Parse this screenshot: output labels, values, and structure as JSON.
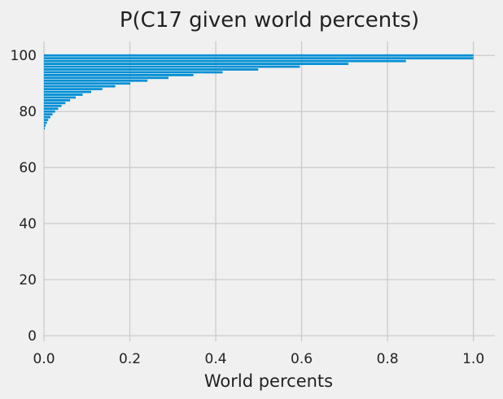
{
  "chart_data": {
    "type": "bar",
    "orientation": "horizontal",
    "title": "P(C17 given world percents)",
    "xlabel": "World percents",
    "ylabel": "",
    "xlim": [
      0,
      1.05
    ],
    "ylim": [
      -2,
      105
    ],
    "x_ticks": [
      0.0,
      0.2,
      0.4,
      0.6,
      0.8,
      1.0
    ],
    "x_tick_labels": [
      "0.0",
      "0.2",
      "0.4",
      "0.6",
      "0.8",
      "1.0"
    ],
    "y_ticks": [
      0,
      20,
      40,
      60,
      80,
      100
    ],
    "y_tick_labels": [
      "0",
      "20",
      "40",
      "60",
      "80",
      "100"
    ],
    "grid": true,
    "bar_color": "#008fd5",
    "background": "#f0f0f0",
    "categories": [
      74,
      75,
      76,
      77,
      78,
      79,
      80,
      81,
      82,
      83,
      84,
      85,
      86,
      87,
      88,
      89,
      90,
      91,
      92,
      93,
      94,
      95,
      96,
      97,
      98,
      99,
      100
    ],
    "values": [
      0.002,
      0.004,
      0.007,
      0.01,
      0.015,
      0.02,
      0.026,
      0.033,
      0.041,
      0.05,
      0.061,
      0.074,
      0.09,
      0.11,
      0.136,
      0.166,
      0.201,
      0.241,
      0.29,
      0.348,
      0.416,
      0.499,
      0.596,
      0.709,
      0.843,
      1.0,
      1.0
    ]
  }
}
